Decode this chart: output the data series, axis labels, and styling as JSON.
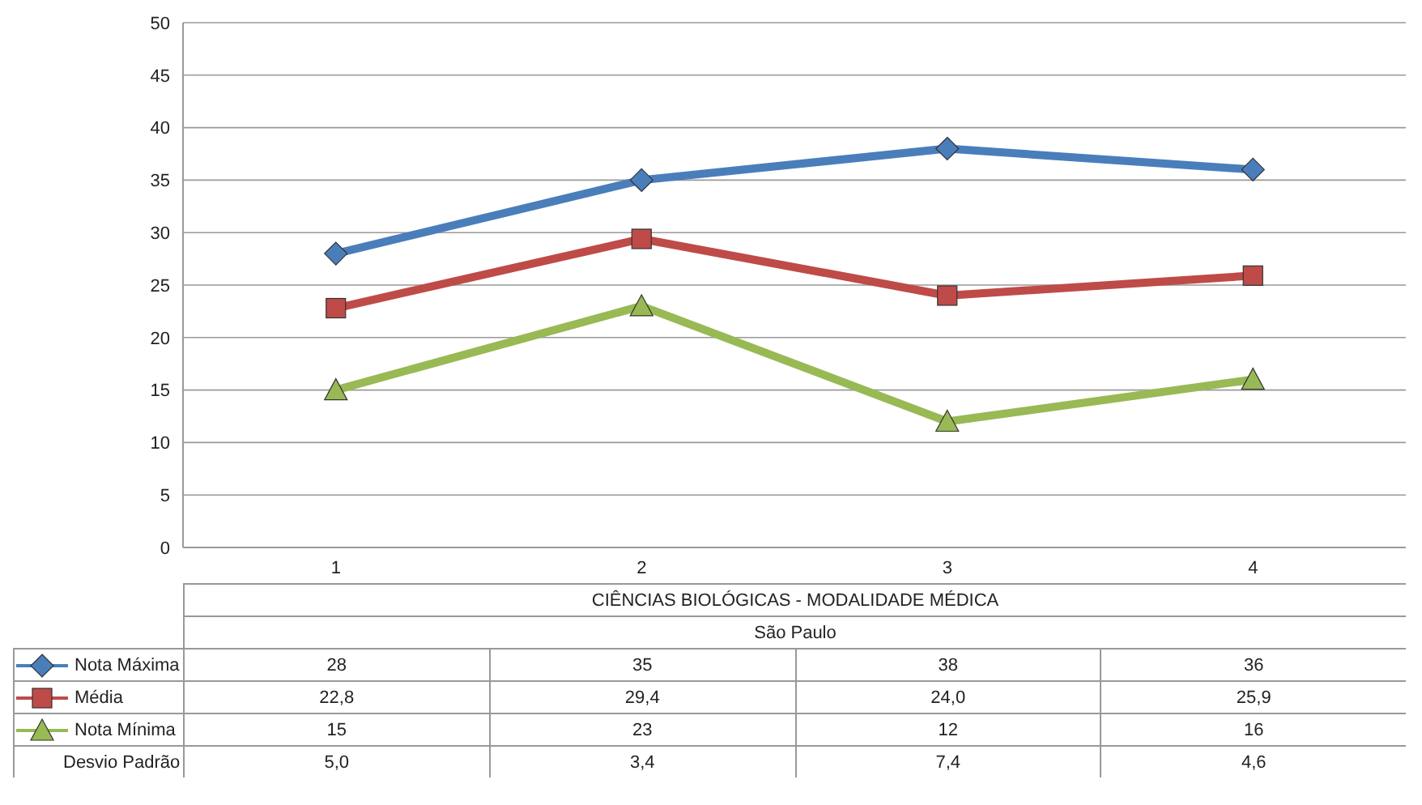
{
  "chart_data": {
    "type": "line",
    "xlabel": "CIÊNCIAS BIOLÓGICAS - MODALIDADE MÉDICA",
    "categories": [
      "1",
      "2",
      "3",
      "4"
    ],
    "series": [
      {
        "name": "Nota Máxima",
        "color": "#4a7ebb",
        "marker": "diamond",
        "values": [
          28,
          35,
          38,
          36
        ],
        "value_labels": [
          "28",
          "35",
          "38",
          "36"
        ]
      },
      {
        "name": "Média",
        "color": "#be4b48",
        "marker": "square",
        "values": [
          22.8,
          29.4,
          24.0,
          25.9
        ],
        "value_labels": [
          "22,8",
          "29,4",
          "24,0",
          "25,9"
        ]
      },
      {
        "name": "Nota Mínima",
        "color": "#98b954",
        "marker": "triangle",
        "values": [
          15,
          23,
          12,
          16
        ],
        "value_labels": [
          "15",
          "23",
          "12",
          "16"
        ]
      }
    ],
    "annotations": [
      "São Paulo",
      "Desvio Padrão",
      "5,0",
      "3,4",
      "7,4",
      "4,6"
    ],
    "ylim": [
      0,
      50
    ],
    "yticks": [
      0,
      5,
      10,
      15,
      20,
      25,
      30,
      35,
      40,
      45,
      50
    ],
    "grid": "y",
    "legend": "bottom",
    "line_style": "solid"
  }
}
